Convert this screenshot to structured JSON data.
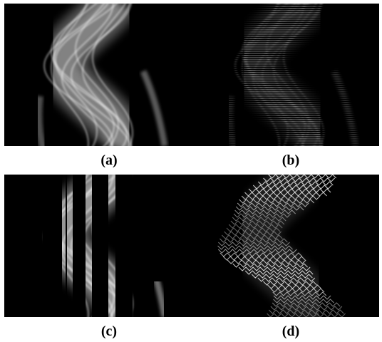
{
  "captions": {
    "a": "(a)",
    "b": "(b)",
    "c": "(c)",
    "d": "(d)"
  },
  "colors": {
    "background": "#000000",
    "page": "#ffffff",
    "signal": "#ffffff"
  },
  "panels": [
    {
      "id": "a",
      "content": "wavy-sinogram"
    },
    {
      "id": "b",
      "content": "line-sampled-sinogram"
    },
    {
      "id": "c",
      "content": "column-masked-sinogram"
    },
    {
      "id": "d",
      "content": "zigzag-sampled-sinogram"
    }
  ]
}
